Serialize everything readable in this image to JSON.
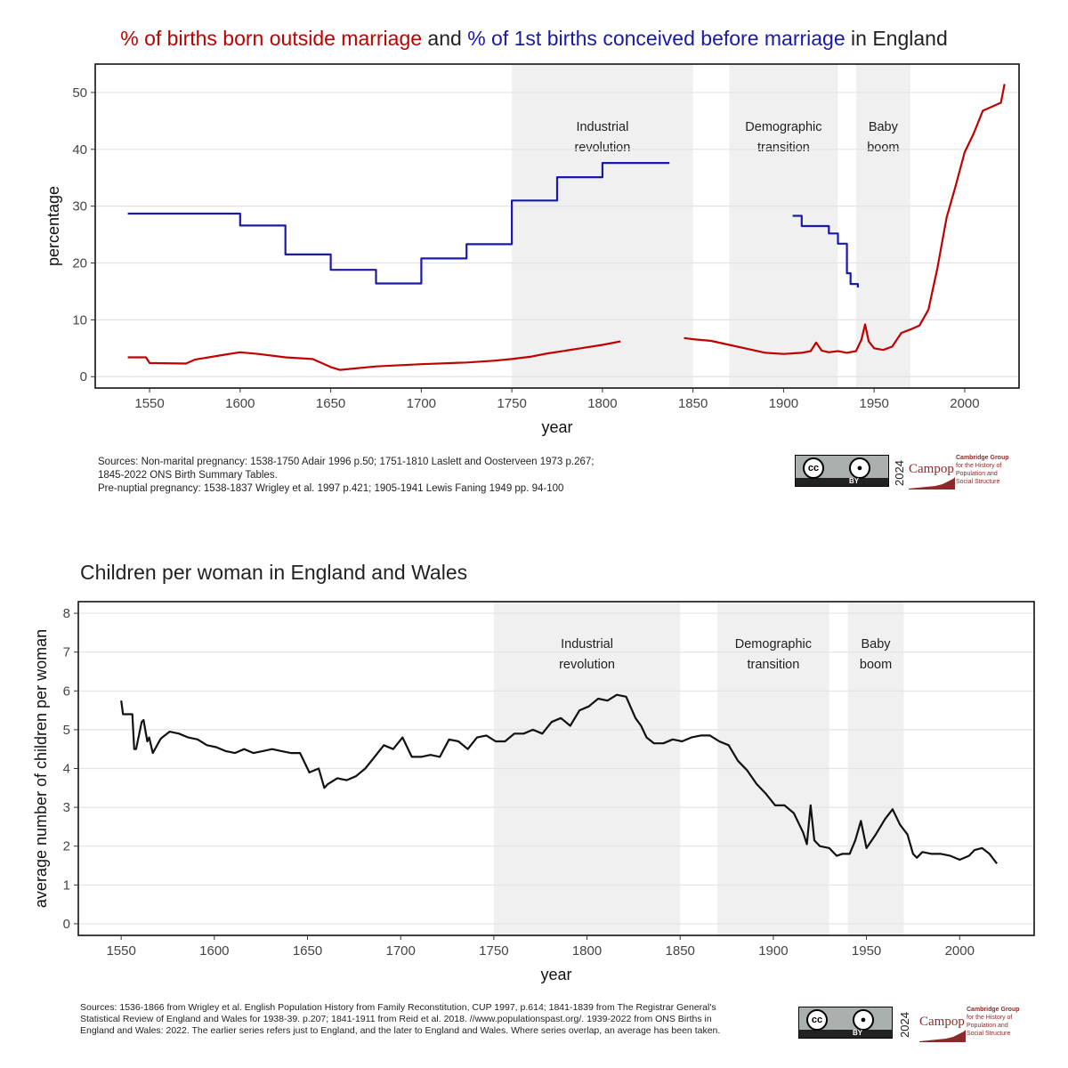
{
  "charts_meta": [
    {
      "title_parts": [
        {
          "text": "% of births born outside marriage",
          "color": "#c00000"
        },
        {
          "text": " and ",
          "color": "#222222"
        },
        {
          "text": "% of 1st births conceived before marriage",
          "color": "#1a1aa8"
        },
        {
          "text": " in England",
          "color": "#222222"
        }
      ],
      "sources": [
        "Sources: Non-marital pregnancy: 1538-1750 Adair 1996 p.50; 1751-1810 Laslett and Oosterveen 1973 p.267;",
        "1845-2022 ONS Birth Summary Tables.",
        "Pre-nuptial pregnancy: 1538-1837 Wrigley et al. 1997 p.421; 1905-1941 Lewis Faning 1949 pp. 94-100"
      ]
    },
    {
      "title": "Children per woman in England and Wales",
      "sources": [
        "Sources: 1536-1866 from Wrigley et al. English Population History from Family Reconstitution, CUP 1997, p.614; 1841-1839 from The Registrar General's",
        "Statistical Review of England and Wales for 1938-39. p.207; 1841-1911 from Reid et al. 2018. //www.populationspast.org/. 1939-2022 from ONS Births in",
        "England and Wales: 2022. The earlier series refers just to England, and the later to England and Wales. Where series overlap, an average has been taken."
      ]
    }
  ],
  "badge": {
    "cc": "cc",
    "by_label": "BY",
    "year": "2024",
    "campop_word": "Campop",
    "campop_lines": [
      "Cambridge Group",
      "for the History of",
      "Population and",
      "Social Structure"
    ]
  },
  "chart_data": [
    {
      "type": "line",
      "xlabel": "year",
      "ylabel": "percentage",
      "xlim": [
        1520,
        2030
      ],
      "ylim": [
        -2,
        55
      ],
      "xticks": [
        1550,
        1600,
        1650,
        1700,
        1750,
        1800,
        1850,
        1900,
        1950,
        2000
      ],
      "yticks": [
        0,
        10,
        20,
        30,
        40,
        50
      ],
      "grid": true,
      "bands": [
        {
          "start": 1750,
          "end": 1850,
          "label": [
            "Industrial",
            "revolution"
          ]
        },
        {
          "start": 1870,
          "end": 1930,
          "label": [
            "Demographic",
            "transition"
          ]
        },
        {
          "start": 1940,
          "end": 1970,
          "label": [
            "Baby",
            "boom"
          ]
        }
      ],
      "series": [
        {
          "color": "#1a1aa8",
          "step": true,
          "segments": [
            {
              "x": [
                1538,
                1600,
                1625,
                1650,
                1675,
                1700,
                1725,
                1750,
                1775,
                1800,
                1837
              ],
              "y": [
                28.7,
                26.6,
                21.5,
                18.8,
                16.4,
                20.8,
                23.3,
                31.0,
                35.1,
                37.6,
                37.6
              ]
            },
            {
              "x": [
                1905,
                1910,
                1925,
                1930,
                1935,
                1937,
                1941
              ],
              "y": [
                28.3,
                26.5,
                25.2,
                23.4,
                18.2,
                16.3,
                15.7
              ]
            }
          ]
        },
        {
          "color": "#c00000",
          "step": false,
          "segments": [
            {
              "x": [
                1538,
                1548,
                1550,
                1570,
                1575,
                1590,
                1600,
                1610,
                1625,
                1640,
                1650,
                1655,
                1675,
                1700,
                1725,
                1740,
                1750,
                1760,
                1770,
                1780,
                1790,
                1800,
                1810
              ],
              "y": [
                3.4,
                3.4,
                2.4,
                2.3,
                3.0,
                3.8,
                4.3,
                4.0,
                3.4,
                3.1,
                1.7,
                1.2,
                1.8,
                2.2,
                2.5,
                2.8,
                3.1,
                3.5,
                4.1,
                4.6,
                5.1,
                5.6,
                6.2
              ]
            },
            {
              "x": [
                1845,
                1850,
                1860,
                1870,
                1880,
                1890,
                1900,
                1910,
                1915,
                1918,
                1921,
                1925,
                1930,
                1935,
                1940,
                1943,
                1945,
                1947,
                1950,
                1955,
                1960,
                1965,
                1970,
                1975,
                1980,
                1985,
                1990,
                1995,
                2000,
                2005,
                2010,
                2015,
                2020,
                2022
              ],
              "y": [
                6.8,
                6.6,
                6.3,
                5.6,
                4.9,
                4.2,
                4.0,
                4.2,
                4.5,
                6.0,
                4.6,
                4.3,
                4.5,
                4.2,
                4.5,
                6.5,
                9.2,
                6.2,
                5.0,
                4.7,
                5.3,
                7.7,
                8.3,
                9.0,
                11.8,
                19.2,
                28.0,
                33.6,
                39.5,
                42.8,
                46.8,
                47.5,
                48.2,
                51.5
              ]
            }
          ]
        }
      ]
    },
    {
      "type": "line",
      "xlabel": "year",
      "ylabel": "average number of children per woman",
      "xlim": [
        1527,
        2040
      ],
      "ylim": [
        -0.3,
        8.3
      ],
      "xticks": [
        1550,
        1600,
        1650,
        1700,
        1750,
        1800,
        1850,
        1900,
        1950,
        2000
      ],
      "yticks": [
        0,
        1,
        2,
        3,
        4,
        5,
        6,
        7,
        8
      ],
      "grid": true,
      "bands": [
        {
          "start": 1750,
          "end": 1850,
          "label": [
            "Industrial",
            "revolution"
          ]
        },
        {
          "start": 1870,
          "end": 1930,
          "label": [
            "Demographic",
            "transition"
          ]
        },
        {
          "start": 1940,
          "end": 1970,
          "label": [
            "Baby",
            "boom"
          ]
        }
      ],
      "series": [
        {
          "color": "#111111",
          "step": false,
          "segments": [
            {
              "x": [
                1550,
                1551,
                1556,
                1557,
                1558,
                1561,
                1562,
                1564,
                1565,
                1567,
                1571,
                1572,
                1576,
                1581,
                1586,
                1591,
                1596,
                1601,
                1606,
                1611,
                1616,
                1621,
                1626,
                1631,
                1636,
                1641,
                1646,
                1651,
                1656,
                1659,
                1661,
                1666,
                1671,
                1676,
                1681,
                1686,
                1691,
                1696,
                1701,
                1706,
                1711,
                1716,
                1721,
                1726,
                1731,
                1736,
                1741,
                1746,
                1751,
                1756,
                1761,
                1766,
                1771,
                1776,
                1781,
                1786,
                1791,
                1796,
                1801,
                1806,
                1811,
                1816,
                1821,
                1826,
                1829,
                1832,
                1836,
                1841,
                1846,
                1851,
                1856,
                1861,
                1866,
                1871,
                1876,
                1881,
                1886,
                1891,
                1896,
                1901,
                1906,
                1911,
                1914,
                1916,
                1918,
                1920,
                1922,
                1925,
                1930,
                1934,
                1937,
                1941,
                1944,
                1947,
                1950,
                1955,
                1960,
                1964,
                1968,
                1972,
                1975,
                1977,
                1980,
                1985,
                1990,
                1995,
                2000,
                2005,
                2008,
                2012,
                2016,
                2020
              ],
              "y": [
                5.75,
                5.4,
                5.4,
                4.5,
                4.5,
                5.2,
                5.25,
                4.7,
                4.8,
                4.4,
                4.75,
                4.8,
                4.95,
                4.9,
                4.8,
                4.75,
                4.6,
                4.55,
                4.45,
                4.4,
                4.5,
                4.4,
                4.45,
                4.5,
                4.45,
                4.4,
                4.4,
                3.9,
                4.0,
                3.5,
                3.6,
                3.75,
                3.7,
                3.8,
                4.0,
                4.3,
                4.6,
                4.5,
                4.8,
                4.3,
                4.3,
                4.35,
                4.3,
                4.75,
                4.7,
                4.5,
                4.8,
                4.85,
                4.7,
                4.7,
                4.9,
                4.9,
                5.0,
                4.9,
                5.2,
                5.3,
                5.1,
                5.5,
                5.6,
                5.8,
                5.75,
                5.9,
                5.85,
                5.3,
                5.1,
                4.8,
                4.65,
                4.65,
                4.75,
                4.7,
                4.8,
                4.85,
                4.85,
                4.7,
                4.6,
                4.2,
                3.95,
                3.6,
                3.35,
                3.05,
                3.05,
                2.85,
                2.55,
                2.35,
                2.05,
                3.05,
                2.15,
                2.0,
                1.95,
                1.75,
                1.8,
                1.8,
                2.15,
                2.65,
                1.95,
                2.3,
                2.7,
                2.95,
                2.55,
                2.3,
                1.8,
                1.7,
                1.85,
                1.8,
                1.8,
                1.75,
                1.65,
                1.75,
                1.9,
                1.95,
                1.8,
                1.55
              ]
            }
          ]
        }
      ]
    }
  ]
}
